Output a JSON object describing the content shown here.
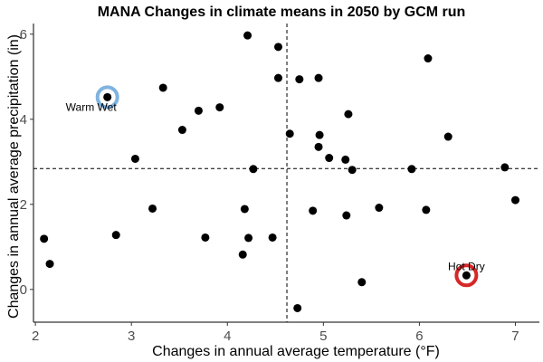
{
  "chart_data": {
    "type": "scatter",
    "title": "MANA Changes in climate means in 2050 by GCM run",
    "xlabel": "Changes in annual average temperature (°F)",
    "ylabel": "Changes in annual average precipitation (in)",
    "xlim": [
      1.98,
      7.25
    ],
    "ylim": [
      -0.77,
      6.25
    ],
    "xticks": [
      2,
      3,
      4,
      5,
      6,
      7
    ],
    "yticks": [
      0,
      2,
      4,
      6
    ],
    "grid": false,
    "reference_lines": {
      "x": 4.62,
      "y": 2.84
    },
    "point_color": "#000000",
    "points": [
      {
        "x": 2.09,
        "y": 1.19
      },
      {
        "x": 2.15,
        "y": 0.6
      },
      {
        "x": 2.75,
        "y": 4.52
      },
      {
        "x": 2.84,
        "y": 1.28
      },
      {
        "x": 3.04,
        "y": 3.07
      },
      {
        "x": 3.22,
        "y": 1.9
      },
      {
        "x": 3.33,
        "y": 4.74
      },
      {
        "x": 3.53,
        "y": 3.75
      },
      {
        "x": 3.7,
        "y": 4.2
      },
      {
        "x": 3.77,
        "y": 1.22
      },
      {
        "x": 3.92,
        "y": 4.28
      },
      {
        "x": 4.16,
        "y": 0.82
      },
      {
        "x": 4.18,
        "y": 1.89
      },
      {
        "x": 4.21,
        "y": 5.97
      },
      {
        "x": 4.22,
        "y": 1.21
      },
      {
        "x": 4.27,
        "y": 2.83
      },
      {
        "x": 4.47,
        "y": 1.22
      },
      {
        "x": 4.53,
        "y": 5.7
      },
      {
        "x": 4.53,
        "y": 4.97
      },
      {
        "x": 4.65,
        "y": 3.66
      },
      {
        "x": 4.73,
        "y": -0.44
      },
      {
        "x": 4.75,
        "y": 4.94
      },
      {
        "x": 4.89,
        "y": 1.85
      },
      {
        "x": 4.95,
        "y": 4.97
      },
      {
        "x": 4.95,
        "y": 3.35
      },
      {
        "x": 4.96,
        "y": 3.63
      },
      {
        "x": 5.06,
        "y": 3.09
      },
      {
        "x": 5.23,
        "y": 3.05
      },
      {
        "x": 5.24,
        "y": 1.74
      },
      {
        "x": 5.26,
        "y": 4.12
      },
      {
        "x": 5.3,
        "y": 2.81
      },
      {
        "x": 5.4,
        "y": 0.17
      },
      {
        "x": 5.58,
        "y": 1.92
      },
      {
        "x": 5.92,
        "y": 2.83
      },
      {
        "x": 6.07,
        "y": 1.87
      },
      {
        "x": 6.09,
        "y": 5.43
      },
      {
        "x": 6.3,
        "y": 3.59
      },
      {
        "x": 6.49,
        "y": 0.33
      },
      {
        "x": 6.89,
        "y": 2.87
      },
      {
        "x": 7.0,
        "y": 2.1
      }
    ],
    "highlights": [
      {
        "label": "Warm Wet",
        "x": 2.75,
        "y": 4.52,
        "ring_color": "#7fb3e0",
        "label_anchor": "below-left"
      },
      {
        "label": "Hot Dry",
        "x": 6.49,
        "y": 0.33,
        "ring_color": "#d62728",
        "label_anchor": "above"
      }
    ]
  }
}
